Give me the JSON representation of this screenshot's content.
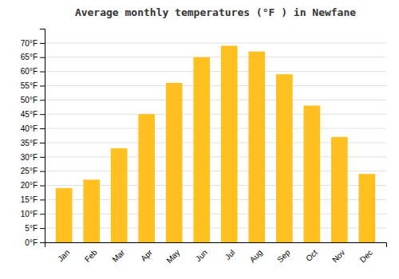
{
  "chart_data": {
    "type": "bar",
    "title": "Average monthly temperatures (°F ) in Newfane",
    "categories": [
      "Jan",
      "Feb",
      "Mar",
      "Apr",
      "May",
      "Jun",
      "Jul",
      "Aug",
      "Sep",
      "Oct",
      "Nov",
      "Dec"
    ],
    "values": [
      19,
      22,
      33,
      45,
      56,
      65,
      69,
      67,
      59,
      48,
      37,
      24
    ],
    "color": "#FFC020",
    "ylim": [
      0,
      75
    ],
    "yticks": [
      {
        "value": 0,
        "label": "0°F"
      },
      {
        "value": 5,
        "label": "5°F"
      },
      {
        "value": 10,
        "label": "10°F"
      },
      {
        "value": 15,
        "label": "15°F"
      },
      {
        "value": 20,
        "label": "20°F"
      },
      {
        "value": 25,
        "label": "25°F"
      },
      {
        "value": 30,
        "label": "30°F"
      },
      {
        "value": 35,
        "label": "35°F"
      },
      {
        "value": 40,
        "label": "40°F"
      },
      {
        "value": 45,
        "label": "45°F"
      },
      {
        "value": 50,
        "label": "50°F"
      },
      {
        "value": 55,
        "label": "55°F"
      },
      {
        "value": 60,
        "label": "60°F"
      },
      {
        "value": 65,
        "label": "65°F"
      },
      {
        "value": 70,
        "label": "70°F"
      }
    ],
    "grid": true
  }
}
